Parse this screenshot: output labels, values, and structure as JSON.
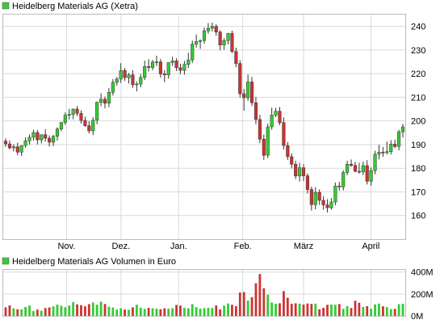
{
  "chart_data": [
    {
      "type": "candlestick",
      "title": "Heidelberg Materials AG (Xetra)",
      "legend_color": "#33cc33",
      "colors": {
        "up": "#33cc33",
        "down": "#cc3333",
        "grid": "#d9d9d9"
      },
      "x_tick_labels": [
        "Nov.",
        "Dez.",
        "Jan.",
        "Feb.",
        "März",
        "April"
      ],
      "y_ticks": [
        160,
        170,
        180,
        190,
        200,
        210,
        220,
        230,
        240
      ],
      "ylim": [
        150,
        245
      ],
      "grid": true,
      "series": {
        "open": [
          191.5,
          190.3,
          188.6,
          189.1,
          186.8,
          189.6,
          191.6,
          193.1,
          195.1,
          192.0,
          194.2,
          192.7,
          191.0,
          193.5,
          196.6,
          199.4,
          202.4,
          202.8,
          205.0,
          203.2,
          200.2,
          198.0,
          195.8,
          200.3,
          207.9,
          209.2,
          207.5,
          212.1,
          216.3,
          217.7,
          221.3,
          218.3,
          219.5,
          215.3,
          215.6,
          218.4,
          223.0,
          222.6,
          224.9,
          225.0,
          219.9,
          219.5,
          224.7,
          225.4,
          222.5,
          221.4,
          223.9,
          225.8,
          232.5,
          233.6,
          234.0,
          238.1,
          239.2,
          240.0,
          237.6,
          232.1,
          234.0,
          237.0,
          229.4,
          224.3,
          211.5,
          209.8,
          216.5,
          207.7,
          200.6,
          192.3,
          185.5,
          197.5,
          202.5,
          204.1,
          199.3,
          189.6,
          184.9,
          181.7,
          176.7,
          180.2,
          176.8,
          171.0,
          164.6,
          169.8,
          166.4,
          164.5,
          163.3,
          165.7,
          172.5,
          172.1,
          178.2,
          181.7,
          181.2,
          178.7,
          178.4,
          181.1,
          174.5,
          179.0,
          185.9,
          186.8,
          186.6,
          187.0,
          190.2,
          189.2,
          195.4
        ],
        "high": [
          192.6,
          191.7,
          190.1,
          190.8,
          189.1,
          193.1,
          194.3,
          196.3,
          196.2,
          194.2,
          196.5,
          193.9,
          194.1,
          197.3,
          198.9,
          203.6,
          205.1,
          205.3,
          206.3,
          204.5,
          201.8,
          199.9,
          201.6,
          208.2,
          211.7,
          210.3,
          213.9,
          217.7,
          218.6,
          224.4,
          222.4,
          220.3,
          221.5,
          216.7,
          219.8,
          225.5,
          226.1,
          225.8,
          227.6,
          226.2,
          221.5,
          224.8,
          227.2,
          226.5,
          224.2,
          225.4,
          228.8,
          234.0,
          236.5,
          234.5,
          239.5,
          241.4,
          241.6,
          240.9,
          238.4,
          235.0,
          237.2,
          238.2,
          231.0,
          225.7,
          213.5,
          219.7,
          218.6,
          210.2,
          202.6,
          194.2,
          198.9,
          205.6,
          205.5,
          205.9,
          201.5,
          191.1,
          186.3,
          183.2,
          182.3,
          181.7,
          177.8,
          172.2,
          172.0,
          171.1,
          168.2,
          166.9,
          167.3,
          174.0,
          174.3,
          179.2,
          183.2,
          183.7,
          182.7,
          182.3,
          182.8,
          183.4,
          180.3,
          187.4,
          189.9,
          189.0,
          191.3,
          191.9,
          192.1,
          196.3,
          198.7
        ],
        "low": [
          189.0,
          188.0,
          187.1,
          185.5,
          185.2,
          188.7,
          190.0,
          191.6,
          190.1,
          190.5,
          191.2,
          189.2,
          189.4,
          191.7,
          195.6,
          198.3,
          200.6,
          200.7,
          202.1,
          198.9,
          197.5,
          194.7,
          194.0,
          198.6,
          206.2,
          205.3,
          205.8,
          210.8,
          214.9,
          216.1,
          216.9,
          215.8,
          214.0,
          212.5,
          214.2,
          217.3,
          220.9,
          221.4,
          223.2,
          218.3,
          216.4,
          217.9,
          223.2,
          221.1,
          219.8,
          219.6,
          222.4,
          224.5,
          231.0,
          230.5,
          232.6,
          236.9,
          237.9,
          236.0,
          229.9,
          230.1,
          232.4,
          228.7,
          222.7,
          209.9,
          204.3,
          208.5,
          206.3,
          198.6,
          190.6,
          183.6,
          184.3,
          196.3,
          201.6,
          198.2,
          187.9,
          183.5,
          179.9,
          175.4,
          174.4,
          174.6,
          169.3,
          162.1,
          162.6,
          164.5,
          162.4,
          161.3,
          162.5,
          164.3,
          170.5,
          170.6,
          177.0,
          180.6,
          178.3,
          177.7,
          177.1,
          173.1,
          172.6,
          177.4,
          183.7,
          184.8,
          185.8,
          185.8,
          188.4,
          187.5,
          193.0
        ],
        "close": [
          190.3,
          188.6,
          189.1,
          186.8,
          189.6,
          191.6,
          193.1,
          195.1,
          192.0,
          194.2,
          192.7,
          191.0,
          193.5,
          196.6,
          199.4,
          202.4,
          202.8,
          205.0,
          203.2,
          200.2,
          198.0,
          195.8,
          200.3,
          207.9,
          209.2,
          207.5,
          212.1,
          216.3,
          217.7,
          221.3,
          218.3,
          219.5,
          215.3,
          215.6,
          218.4,
          223.0,
          222.6,
          224.9,
          225.0,
          219.9,
          219.5,
          224.7,
          225.4,
          222.5,
          221.4,
          223.9,
          225.8,
          232.5,
          233.6,
          234.0,
          238.1,
          239.2,
          240.0,
          237.6,
          232.1,
          234.0,
          237.0,
          229.4,
          224.3,
          211.5,
          209.8,
          216.5,
          207.7,
          200.6,
          192.3,
          185.5,
          197.5,
          202.5,
          204.1,
          199.3,
          189.6,
          184.9,
          181.7,
          176.7,
          180.2,
          176.8,
          171.0,
          164.6,
          169.8,
          166.4,
          164.5,
          163.3,
          165.7,
          172.5,
          172.1,
          178.2,
          181.7,
          181.2,
          178.7,
          178.4,
          181.1,
          174.5,
          179.0,
          185.9,
          186.8,
          186.6,
          187.0,
          190.2,
          189.2,
          195.4,
          197.5
        ]
      }
    },
    {
      "type": "bar",
      "title": "Heidelberg Materials AG Volumen in Euro",
      "legend_color": "#33cc33",
      "y_ticks": [
        "0M",
        "200M",
        "400M"
      ],
      "y_tick_values": [
        0,
        200,
        400
      ],
      "ylim": [
        0,
        420
      ],
      "grid": true,
      "values": [
        78,
        96,
        70,
        61,
        60,
        82,
        95,
        44,
        57,
        48,
        72,
        78,
        87,
        103,
        93,
        79,
        95,
        126,
        105,
        98,
        88,
        107,
        122,
        102,
        130,
        109,
        84,
        77,
        58,
        70,
        58,
        55,
        78,
        102,
        75,
        65,
        73,
        70,
        66,
        61,
        69,
        66,
        70,
        100,
        94,
        73,
        69,
        107,
        80,
        66,
        71,
        73,
        72,
        95,
        60,
        93,
        113,
        102,
        89,
        213,
        217,
        140,
        171,
        298,
        382,
        252,
        194,
        122,
        111,
        115,
        226,
        166,
        111,
        115,
        112,
        104,
        113,
        110,
        112,
        61,
        74,
        101,
        103,
        102,
        108,
        65,
        89,
        72,
        138,
        120,
        82,
        89,
        65,
        105,
        112,
        88,
        80,
        63,
        64,
        107,
        111
      ]
    }
  ]
}
